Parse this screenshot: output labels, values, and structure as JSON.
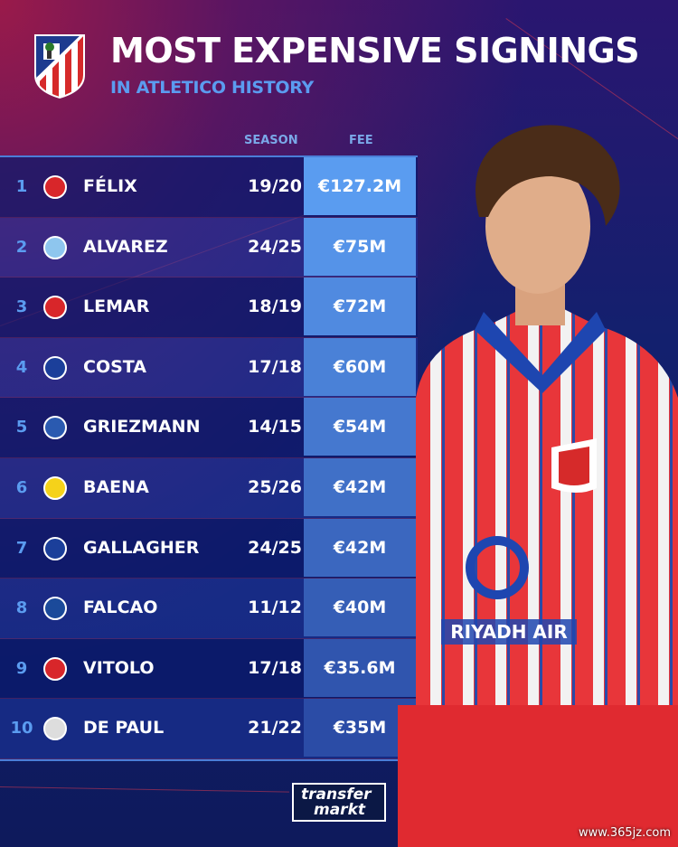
{
  "header": {
    "title": "MOST EXPENSIVE SIGNINGS",
    "subtitle": "IN ATLETICO HISTORY"
  },
  "columns": {
    "season": "SEASON",
    "fee": "FEE"
  },
  "rows": [
    {
      "rank": "1",
      "club_icon": "benfica-crest-icon",
      "player": "FÉLIX",
      "season": "19/20",
      "fee": "€127.2M"
    },
    {
      "rank": "2",
      "club_icon": "man-city-crest-icon",
      "player": "ALVAREZ",
      "season": "24/25",
      "fee": "€75M"
    },
    {
      "rank": "3",
      "club_icon": "monaco-crest-icon",
      "player": "LEMAR",
      "season": "18/19",
      "fee": "€72M"
    },
    {
      "rank": "4",
      "club_icon": "chelsea-crest-icon",
      "player": "COSTA",
      "season": "17/18",
      "fee": "€60M"
    },
    {
      "rank": "5",
      "club_icon": "real-sociedad-crest-icon",
      "player": "GRIEZMANN",
      "season": "14/15",
      "fee": "€54M"
    },
    {
      "rank": "6",
      "club_icon": "villarreal-crest-icon",
      "player": "BAENA",
      "season": "25/26",
      "fee": "€42M"
    },
    {
      "rank": "7",
      "club_icon": "chelsea-crest-icon",
      "player": "GALLAGHER",
      "season": "24/25",
      "fee": "€42M"
    },
    {
      "rank": "8",
      "club_icon": "porto-crest-icon",
      "player": "FALCAO",
      "season": "11/12",
      "fee": "€40M"
    },
    {
      "rank": "9",
      "club_icon": "sevilla-crest-icon",
      "player": "VITOLO",
      "season": "17/18",
      "fee": "€35.6M"
    },
    {
      "rank": "10",
      "club_icon": "udinese-crest-icon",
      "player": "DE PAUL",
      "season": "21/22",
      "fee": "€35M"
    }
  ],
  "footer": {
    "logo_line1": "transfer",
    "logo_line2": "markt",
    "watermark": "www.365jz.com"
  },
  "colors": {
    "accent": "#5b9cf0",
    "fee_top": "#5a9cf0",
    "fee_bottom": "#2b4ca6",
    "background": "#13206e"
  }
}
